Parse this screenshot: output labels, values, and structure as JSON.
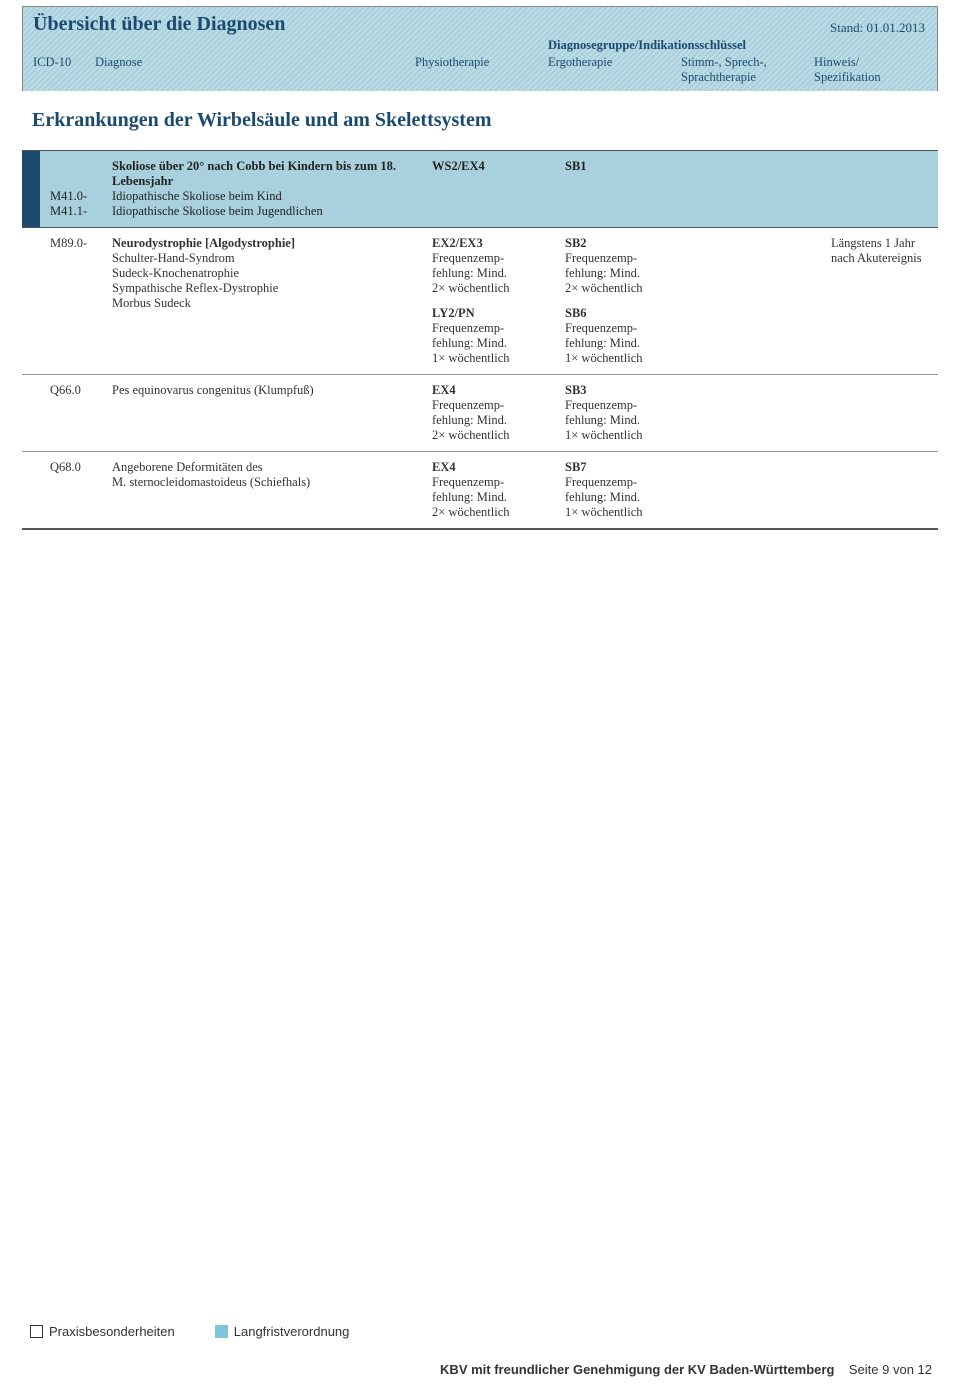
{
  "header": {
    "title": "Übersicht über die Diagnosen",
    "stand": "Stand: 01.01.2013",
    "group_label": "Diagnosegruppe/Indikationsschlüssel",
    "cols": {
      "icd": "ICD-10",
      "diag": "Diagnose",
      "phys": "Physiotherapie",
      "ergo": "Ergotherapie",
      "sprach": "Stimm-, Sprech-, Sprachtherapie",
      "hinweis": "Hinweis/ Spezifikation"
    }
  },
  "section_title": "Erkrankungen der Wirbelsäule und am Skelettsystem",
  "rows": [
    {
      "highlight": true,
      "icd_lines": [
        "",
        "",
        "M41.0-",
        "M41.1-"
      ],
      "diag_bold": "Skoliose über 20° nach Cobb bei Kindern bis zum 18. Lebensjahr",
      "diag_lines": [
        "Idiopathische Skoliose beim Kind",
        "Idiopathische Skoliose beim Jugendlichen"
      ],
      "phys": [
        {
          "bold": "WS2/EX4",
          "lines": []
        }
      ],
      "ergo": [
        {
          "bold": "SB1",
          "lines": []
        }
      ],
      "sprach": [],
      "hinweis": []
    },
    {
      "highlight": false,
      "icd_lines": [
        "M89.0-"
      ],
      "diag_bold": "Neurodystrophie [Algodystrophie]",
      "diag_lines": [
        "Schulter-Hand-Syndrom",
        "Sudeck-Knochenatrophie",
        "Sympathische Reflex-Dystrophie",
        "Morbus Sudeck"
      ],
      "phys": [
        {
          "bold": "EX2/EX3",
          "lines": [
            "Frequenzemp-",
            "fehlung: Mind.",
            "2× wöchentlich"
          ]
        },
        {
          "bold": "LY2/PN",
          "lines": [
            "Frequenzemp-",
            "fehlung: Mind.",
            "1× wöchentlich"
          ]
        }
      ],
      "ergo": [
        {
          "bold": "SB2",
          "lines": [
            "Frequenzemp-",
            "fehlung: Mind.",
            "2× wöchentlich"
          ]
        },
        {
          "bold": "SB6",
          "lines": [
            "Frequenzemp-",
            "fehlung: Mind.",
            "1× wöchentlich"
          ]
        }
      ],
      "sprach": [],
      "hinweis": [
        "Längstens 1 Jahr",
        "nach Akutereignis"
      ]
    },
    {
      "highlight": false,
      "icd_lines": [
        "Q66.0"
      ],
      "diag_bold": "",
      "diag_lines": [
        "Pes equinovarus congenitus (Klumpfuß)"
      ],
      "phys": [
        {
          "bold": "EX4",
          "lines": [
            "Frequenzemp-",
            "fehlung: Mind.",
            "2× wöchentlich"
          ]
        }
      ],
      "ergo": [
        {
          "bold": "SB3",
          "lines": [
            "Frequenzemp-",
            "fehlung: Mind.",
            "1× wöchentlich"
          ]
        }
      ],
      "sprach": [],
      "hinweis": []
    },
    {
      "highlight": false,
      "last": true,
      "icd_lines": [
        "Q68.0"
      ],
      "diag_bold": "",
      "diag_lines": [
        "Angeborene Deformitäten des",
        "M. sternocleidomastoideus (Schiefhals)"
      ],
      "phys": [
        {
          "bold": "EX4",
          "lines": [
            "Frequenzemp-",
            "fehlung: Mind.",
            "2× wöchentlich"
          ]
        }
      ],
      "ergo": [
        {
          "bold": "SB7",
          "lines": [
            "Frequenzemp-",
            "fehlung: Mind.",
            "1× wöchentlich"
          ]
        }
      ],
      "sprach": [],
      "hinweis": []
    }
  ],
  "legend": {
    "item1": "Praxisbesonderheiten",
    "item2": "Langfristverordnung"
  },
  "footer": {
    "left": "KBV mit freundlicher Genehmigung der KV Baden-Württemberg",
    "right": "Seite 9 von 12"
  },
  "colors": {
    "header_blue": "#1a4a6e",
    "hatch_light": "#bedce6",
    "hatch_dark": "#a8d0dd",
    "row_hi": "#a8d0dd",
    "marker": "#1a4a6e",
    "legend_fill": "#7ec3d9"
  }
}
